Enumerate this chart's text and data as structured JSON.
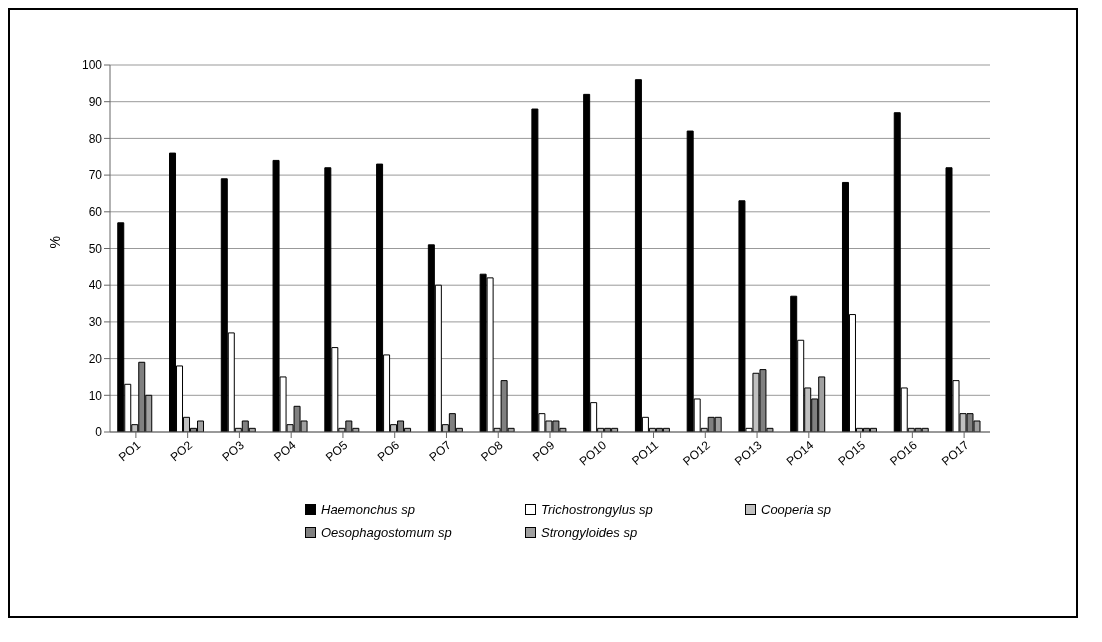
{
  "chart_data": {
    "type": "bar",
    "ylabel": "%",
    "categories": [
      "PO1",
      "PO2",
      "PO3",
      "PO4",
      "PO5",
      "PO6",
      "PO7",
      "PO8",
      "PO9",
      "PO10",
      "PO11",
      "PO12",
      "PO13",
      "PO14",
      "PO15",
      "PO16",
      "PO17"
    ],
    "series": [
      {
        "name": "Haemonchus sp",
        "color": "#000000",
        "values": [
          57,
          76,
          69,
          74,
          72,
          73,
          51,
          43,
          88,
          92,
          96,
          82,
          63,
          37,
          68,
          87,
          72
        ]
      },
      {
        "name": "Trichostrongylus sp",
        "color": "#ffffff",
        "values": [
          13,
          18,
          27,
          15,
          23,
          21,
          40,
          42,
          5,
          8,
          4,
          9,
          1,
          25,
          32,
          12,
          14
        ]
      },
      {
        "name": "Cooperia sp",
        "color": "#c0c0c0",
        "values": [
          2,
          4,
          1,
          2,
          1,
          2,
          2,
          1,
          3,
          1,
          1,
          1,
          16,
          12,
          1,
          1,
          5
        ]
      },
      {
        "name": "Oesophagostomum sp",
        "color": "#808080",
        "values": [
          19,
          1,
          3,
          7,
          3,
          3,
          5,
          14,
          3,
          1,
          1,
          4,
          17,
          9,
          1,
          1,
          5
        ]
      },
      {
        "name": "Strongyloides sp",
        "color": "#a0a0a0",
        "values": [
          10,
          3,
          1,
          3,
          1,
          1,
          1,
          1,
          1,
          1,
          1,
          4,
          1,
          15,
          1,
          1,
          3
        ]
      }
    ],
    "ylim": [
      0,
      100
    ],
    "yticks": [
      0,
      10,
      20,
      30,
      40,
      50,
      60,
      70,
      80,
      90,
      100
    ],
    "grid": "y",
    "legend": "bottom"
  }
}
